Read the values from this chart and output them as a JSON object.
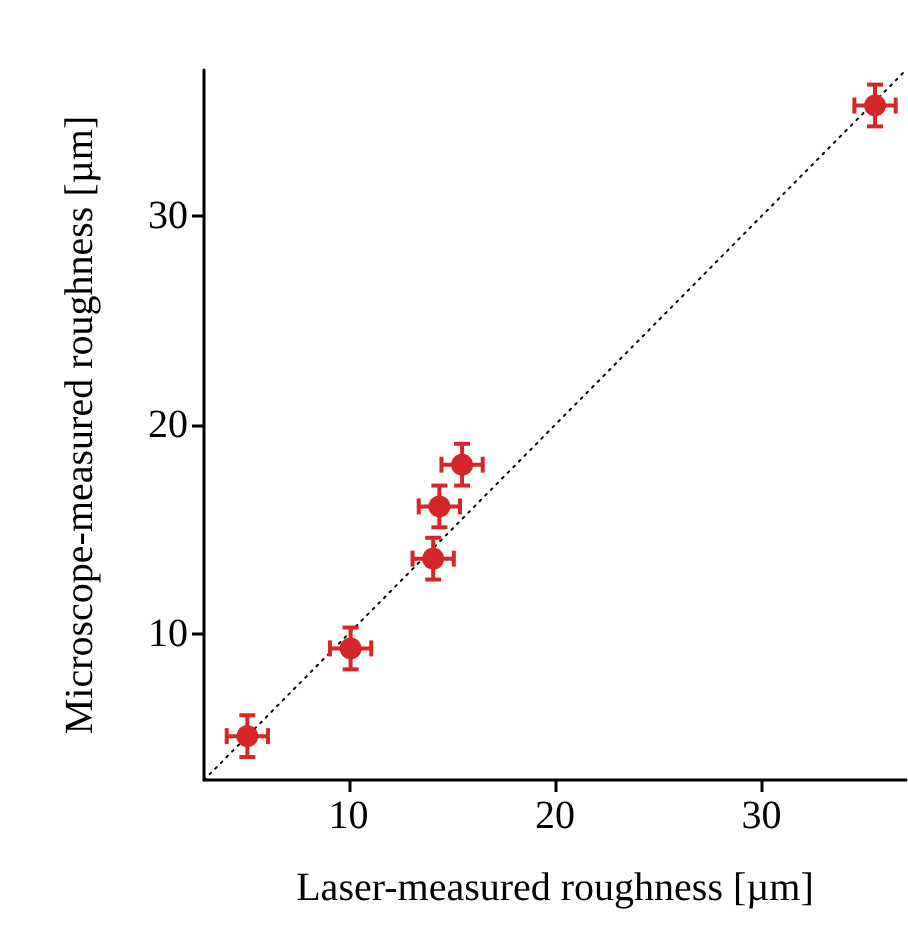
{
  "chart_data": {
    "type": "scatter",
    "xlabel": "Laser-measured roughness [µm]",
    "ylabel": "Microscope-measured roughness [µm]",
    "xlim": [
      3,
      37
    ],
    "ylim": [
      3,
      37
    ],
    "xticks": [
      10,
      20,
      30
    ],
    "yticks": [
      10,
      20,
      30
    ],
    "grid": false,
    "marker": "circle",
    "series": [
      {
        "type": "line",
        "color": "#000000",
        "line_style": "dotted",
        "marker": "none",
        "x": [
          3,
          37
        ],
        "values": [
          3,
          37
        ]
      },
      {
        "color": "#d62728",
        "x": [
          5.1,
          10.1,
          14.1,
          14.4,
          15.5,
          35.5
        ],
        "values": [
          5.1,
          9.3,
          13.6,
          16.1,
          18.1,
          35.3
        ],
        "errors": [
          1,
          1,
          1,
          1,
          1,
          1
        ],
        "xerrors": [
          1,
          1,
          1,
          1,
          1,
          1
        ]
      }
    ]
  }
}
